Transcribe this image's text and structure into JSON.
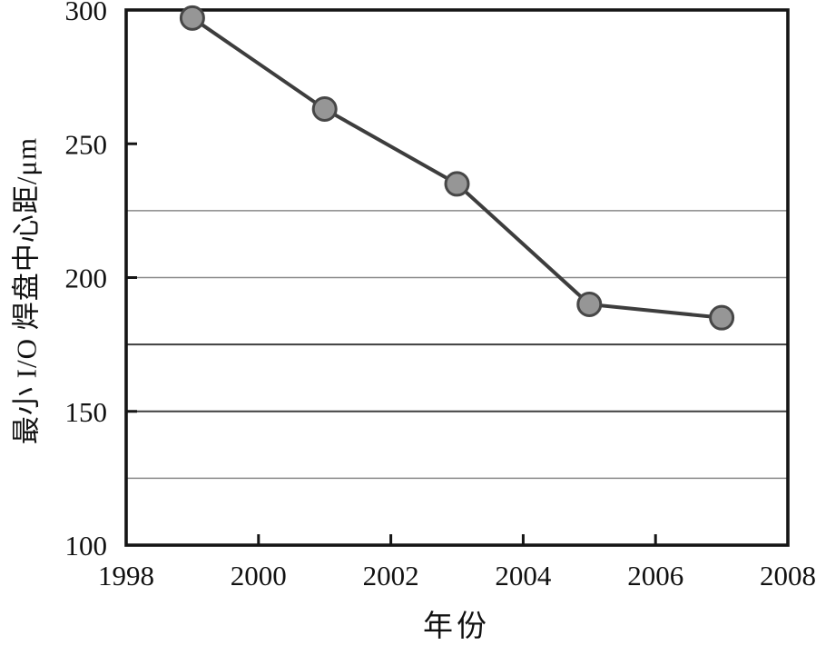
{
  "chart_data": {
    "type": "line",
    "title": "",
    "series": [
      {
        "name": "minimum-io-pad-pitch",
        "x": [
          1999,
          2001,
          2003,
          2005,
          2007
        ],
        "y": [
          297,
          263,
          235,
          190,
          185
        ]
      }
    ],
    "xlabel": "年份",
    "ylabel": "最小 I/O 焊盘中心距/μm",
    "xlim": [
      1998,
      2008
    ],
    "ylim": [
      100,
      300
    ],
    "x_ticks": [
      1998,
      2000,
      2002,
      2004,
      2006,
      2008
    ],
    "y_ticks": [
      100,
      150,
      200,
      250,
      300
    ],
    "gridlines": [
      {
        "value": 125,
        "shade": "light"
      },
      {
        "value": 150,
        "shade": "dark"
      },
      {
        "value": 175,
        "shade": "dark"
      },
      {
        "value": 200,
        "shade": "light"
      },
      {
        "value": 225,
        "shade": "light"
      }
    ],
    "grid": "horizontal-only",
    "legend": "none",
    "marker": "circle"
  },
  "colors": {
    "background": "#ffffff",
    "axis": "#151515",
    "grid_light": "#8a8a8a",
    "grid_dark": "#3f3f3f",
    "line": "#3d3d3d",
    "marker_fill": "#969696",
    "marker_stroke": "#474747",
    "text": "#111111"
  }
}
